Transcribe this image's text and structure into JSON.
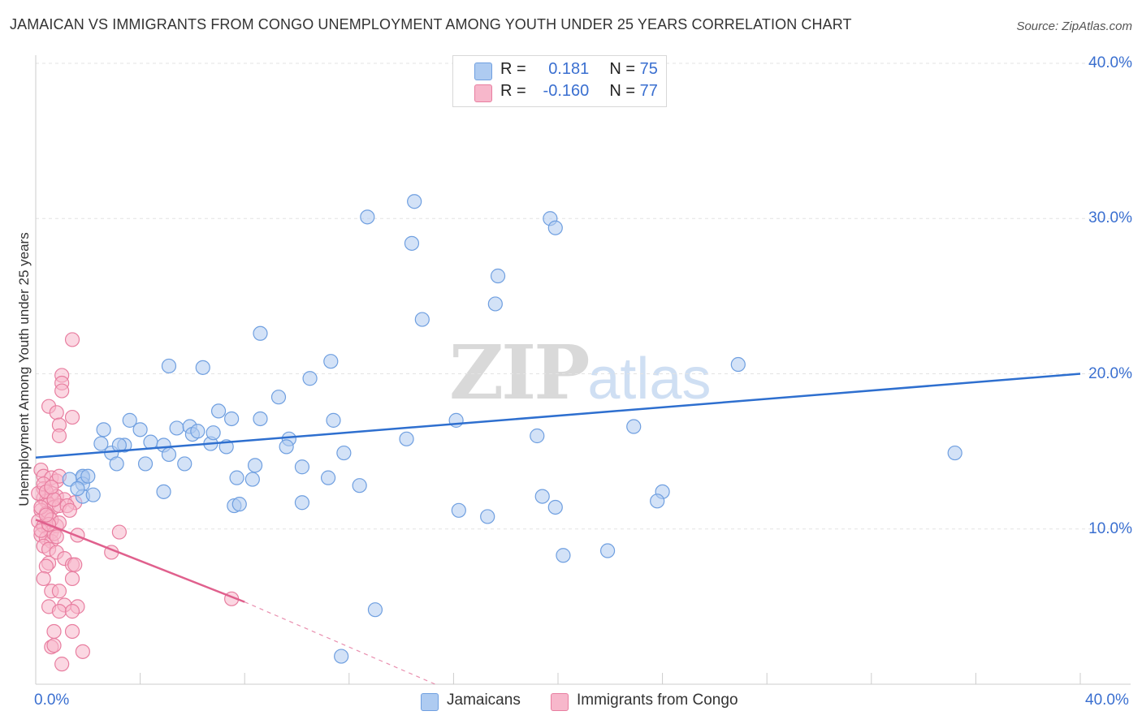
{
  "header": {
    "title": "JAMAICAN VS IMMIGRANTS FROM CONGO UNEMPLOYMENT AMONG YOUTH UNDER 25 YEARS CORRELATION CHART",
    "source": "Source: ZipAtlas.com"
  },
  "watermark": {
    "zip": "ZIP",
    "atlas": "atlas"
  },
  "legend": {
    "rows": [
      {
        "r_label": "R =",
        "r_value": "0.181",
        "n_label": "N =",
        "n_value": "75",
        "color": "#aecbf1"
      },
      {
        "r_label": "R =",
        "r_value": "-0.160",
        "n_label": "N =",
        "n_value": "77",
        "color": "#f7b7cb"
      }
    ]
  },
  "bottom_legend": {
    "series1": "Jamaicans",
    "series2": "Immigrants from Congo"
  },
  "colors": {
    "blue_fill": "#aecbf1",
    "blue_stroke": "#6f9fe0",
    "blue_line": "#2e6fcf",
    "pink_fill": "#f7b7cb",
    "pink_stroke": "#e87ea0",
    "pink_line": "#e0608d",
    "grid": "#e3e3e3",
    "tick_label": "#3a6fd0"
  },
  "chart_data": {
    "type": "scatter",
    "title": "JAMAICAN VS IMMIGRANTS FROM CONGO UNEMPLOYMENT AMONG YOUTH UNDER 25 YEARS CORRELATION CHART",
    "xlabel": "",
    "ylabel": "Unemployment Among Youth under 25 years",
    "xlim": [
      0,
      40
    ],
    "ylim": [
      0,
      40
    ],
    "x_tick_labels": [
      "0.0%",
      "40.0%"
    ],
    "y_tick_labels": [
      "10.0%",
      "20.0%",
      "30.0%",
      "40.0%"
    ],
    "y_ticks": [
      10,
      20,
      30,
      40
    ],
    "grid": true,
    "series": [
      {
        "name": "Jamaicans",
        "R": 0.181,
        "N": 75,
        "trend": {
          "x": [
            0,
            40
          ],
          "y": [
            14.6,
            20.0
          ]
        },
        "points": [
          [
            12.7,
            30.1
          ],
          [
            14.5,
            31.1
          ],
          [
            14.4,
            28.4
          ],
          [
            19.7,
            30.0
          ],
          [
            19.9,
            29.4
          ],
          [
            17.7,
            26.3
          ],
          [
            17.6,
            24.5
          ],
          [
            14.8,
            23.5
          ],
          [
            8.6,
            22.6
          ],
          [
            5.1,
            20.5
          ],
          [
            6.4,
            20.4
          ],
          [
            11.3,
            20.8
          ],
          [
            10.5,
            19.7
          ],
          [
            26.9,
            20.6
          ],
          [
            9.3,
            18.5
          ],
          [
            7.0,
            17.6
          ],
          [
            7.5,
            17.1
          ],
          [
            8.6,
            17.1
          ],
          [
            11.4,
            17.0
          ],
          [
            3.6,
            17.0
          ],
          [
            2.6,
            16.4
          ],
          [
            4.0,
            16.4
          ],
          [
            5.4,
            16.5
          ],
          [
            5.9,
            16.6
          ],
          [
            6.0,
            16.1
          ],
          [
            6.2,
            16.3
          ],
          [
            9.7,
            15.8
          ],
          [
            14.2,
            15.8
          ],
          [
            16.1,
            17.0
          ],
          [
            19.2,
            16.0
          ],
          [
            22.9,
            16.6
          ],
          [
            2.5,
            15.5
          ],
          [
            3.4,
            15.4
          ],
          [
            4.4,
            15.6
          ],
          [
            4.9,
            15.4
          ],
          [
            6.7,
            15.5
          ],
          [
            7.3,
            15.3
          ],
          [
            9.6,
            15.3
          ],
          [
            2.9,
            14.9
          ],
          [
            5.1,
            14.8
          ],
          [
            11.8,
            14.9
          ],
          [
            3.1,
            14.2
          ],
          [
            4.2,
            14.2
          ],
          [
            5.7,
            14.2
          ],
          [
            8.4,
            14.1
          ],
          [
            10.2,
            14.0
          ],
          [
            35.2,
            14.9
          ],
          [
            1.8,
            13.3
          ],
          [
            7.7,
            13.3
          ],
          [
            8.3,
            13.2
          ],
          [
            11.2,
            13.3
          ],
          [
            1.8,
            13.4
          ],
          [
            1.3,
            13.2
          ],
          [
            1.8,
            12.9
          ],
          [
            12.4,
            12.8
          ],
          [
            1.8,
            12.1
          ],
          [
            2.2,
            12.2
          ],
          [
            4.9,
            12.4
          ],
          [
            19.4,
            12.1
          ],
          [
            24.0,
            12.4
          ],
          [
            7.6,
            11.5
          ],
          [
            7.8,
            11.6
          ],
          [
            10.2,
            11.7
          ],
          [
            16.2,
            11.2
          ],
          [
            19.9,
            11.4
          ],
          [
            23.8,
            11.8
          ],
          [
            17.3,
            10.8
          ],
          [
            20.2,
            8.3
          ],
          [
            21.9,
            8.6
          ],
          [
            13.0,
            4.8
          ],
          [
            11.7,
            1.8
          ],
          [
            2.0,
            13.4
          ],
          [
            1.6,
            12.6
          ],
          [
            6.8,
            16.2
          ],
          [
            3.2,
            15.4
          ]
        ]
      },
      {
        "name": "Immigrants from Congo",
        "R": -0.16,
        "N": 77,
        "trend": {
          "x": [
            0,
            8.0
          ],
          "y": [
            10.6,
            5.3
          ]
        },
        "trend_dashed": {
          "x": [
            8.0,
            15.3
          ],
          "y": [
            5.3,
            0
          ]
        },
        "points": [
          [
            1.4,
            22.2
          ],
          [
            1.0,
            19.9
          ],
          [
            1.0,
            19.4
          ],
          [
            1.0,
            18.9
          ],
          [
            0.5,
            17.9
          ],
          [
            1.4,
            17.2
          ],
          [
            0.8,
            17.5
          ],
          [
            0.9,
            16.7
          ],
          [
            0.9,
            16.0
          ],
          [
            0.2,
            13.8
          ],
          [
            0.3,
            13.4
          ],
          [
            0.6,
            13.3
          ],
          [
            0.8,
            13.1
          ],
          [
            0.9,
            13.4
          ],
          [
            0.3,
            12.6
          ],
          [
            0.6,
            12.3
          ],
          [
            0.8,
            12.1
          ],
          [
            1.1,
            11.9
          ],
          [
            1.5,
            11.7
          ],
          [
            0.3,
            12.0
          ],
          [
            0.4,
            11.8
          ],
          [
            0.5,
            11.6
          ],
          [
            0.7,
            11.4
          ],
          [
            0.9,
            11.5
          ],
          [
            0.2,
            11.2
          ],
          [
            0.4,
            11.0
          ],
          [
            0.5,
            10.8
          ],
          [
            0.1,
            10.5
          ],
          [
            0.3,
            10.2
          ],
          [
            0.5,
            10.0
          ],
          [
            0.6,
            9.8
          ],
          [
            0.8,
            10.2
          ],
          [
            0.2,
            9.6
          ],
          [
            0.4,
            9.4
          ],
          [
            0.6,
            9.2
          ],
          [
            0.7,
            9.7
          ],
          [
            1.6,
            9.6
          ],
          [
            3.2,
            9.8
          ],
          [
            0.3,
            8.9
          ],
          [
            0.5,
            8.7
          ],
          [
            0.8,
            8.5
          ],
          [
            1.1,
            8.1
          ],
          [
            2.9,
            8.5
          ],
          [
            0.5,
            7.8
          ],
          [
            0.4,
            7.6
          ],
          [
            1.4,
            7.7
          ],
          [
            1.5,
            7.7
          ],
          [
            0.3,
            6.8
          ],
          [
            1.4,
            6.8
          ],
          [
            0.6,
            6.0
          ],
          [
            0.9,
            6.0
          ],
          [
            7.5,
            5.5
          ],
          [
            0.5,
            5.0
          ],
          [
            1.1,
            5.1
          ],
          [
            1.6,
            5.0
          ],
          [
            0.9,
            4.7
          ],
          [
            1.4,
            4.7
          ],
          [
            0.7,
            3.4
          ],
          [
            1.4,
            3.4
          ],
          [
            0.6,
            2.4
          ],
          [
            0.7,
            2.5
          ],
          [
            1.8,
            2.1
          ],
          [
            1.0,
            1.3
          ],
          [
            0.1,
            12.3
          ],
          [
            0.3,
            12.9
          ],
          [
            0.6,
            10.6
          ],
          [
            0.9,
            10.4
          ],
          [
            0.2,
            9.9
          ],
          [
            1.2,
            11.5
          ],
          [
            0.4,
            12.4
          ],
          [
            0.7,
            11.9
          ],
          [
            0.5,
            10.3
          ],
          [
            1.3,
            11.2
          ],
          [
            0.8,
            9.5
          ],
          [
            0.2,
            11.4
          ],
          [
            0.6,
            12.7
          ],
          [
            0.4,
            10.9
          ]
        ]
      }
    ]
  },
  "y_axis_label": "Unemployment Among Youth under 25 years"
}
